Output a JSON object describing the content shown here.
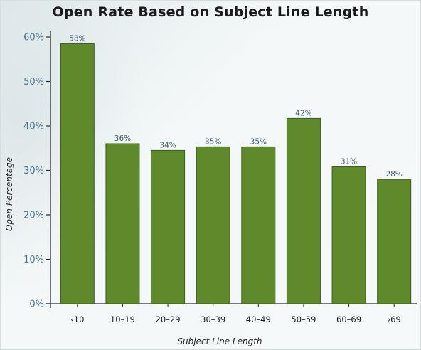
{
  "chart_data": {
    "type": "bar",
    "title": "Open Rate Based on Subject Line Length",
    "xlabel": "Subject Line Length",
    "ylabel": "Open Percentage",
    "categories": [
      "<10",
      "10-19",
      "20-29",
      "30-39",
      "40-49",
      "50-59",
      "60-69",
      ">69"
    ],
    "category_labels": [
      "‹10",
      "10–19",
      "20–29",
      "30–39",
      "40–49",
      "50–59",
      "60–69",
      "›69"
    ],
    "values": [
      58.5,
      36,
      34.5,
      35.3,
      35.3,
      41.7,
      30.8,
      28
    ],
    "data_labels": [
      "58%",
      "36%",
      "34%",
      "35%",
      "35%",
      "42%",
      "31%",
      "28%"
    ],
    "yticks": [
      "0%",
      "10%",
      "20%",
      "30%",
      "40%",
      "50%",
      "60%"
    ],
    "ylim": [
      0,
      60
    ],
    "grid": false,
    "legend": "none",
    "bar_color": "#5e8a2c",
    "bar_edge_color": "#3e5c1c"
  }
}
